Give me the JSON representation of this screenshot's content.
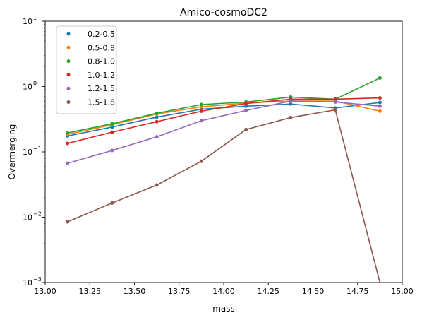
{
  "chart_data": {
    "type": "line",
    "title": "Amico-cosmoDC2",
    "xlabel": "mass",
    "ylabel": "Overmerging",
    "xlim": [
      13.0,
      15.0
    ],
    "ylim": [
      0.001,
      10
    ],
    "yscale": "log",
    "grid": false,
    "legend_position": "top-left",
    "x_ticks": [
      13.0,
      13.25,
      13.5,
      13.75,
      14.0,
      14.25,
      14.5,
      14.75,
      15.0
    ],
    "x_tick_labels": [
      "13.00",
      "13.25",
      "13.50",
      "13.75",
      "14.00",
      "14.25",
      "14.50",
      "14.75",
      "15.00"
    ],
    "y_ticks": [
      0.001,
      0.01,
      0.1,
      1,
      10
    ],
    "x": [
      13.125,
      13.375,
      13.625,
      13.875,
      14.125,
      14.375,
      14.625,
      14.875
    ],
    "series": [
      {
        "name": "0.2-0.5",
        "color": "#1f77b4",
        "values": [
          0.175,
          0.24,
          0.34,
          0.45,
          0.5,
          0.54,
          0.47,
          0.57
        ]
      },
      {
        "name": "0.5-0.8",
        "color": "#ff7f0e",
        "values": [
          0.185,
          0.26,
          0.38,
          0.49,
          0.56,
          0.6,
          0.6,
          0.42
        ]
      },
      {
        "name": "0.8-1.0",
        "color": "#2ca02c",
        "values": [
          0.195,
          0.27,
          0.39,
          0.53,
          0.58,
          0.69,
          0.64,
          1.35
        ]
      },
      {
        "name": "1.0-1.2",
        "color": "#d62728",
        "values": [
          0.135,
          0.2,
          0.29,
          0.42,
          0.55,
          0.64,
          0.64,
          0.67
        ]
      },
      {
        "name": "1.2-1.5",
        "color": "#9467bd",
        "values": [
          0.067,
          0.105,
          0.17,
          0.3,
          0.43,
          0.6,
          0.58,
          0.5
        ]
      },
      {
        "name": "1.5-1.8",
        "color": "#8c564b",
        "values": [
          0.0085,
          0.0165,
          0.031,
          0.072,
          0.22,
          0.335,
          0.44,
          0.0
        ]
      }
    ]
  }
}
